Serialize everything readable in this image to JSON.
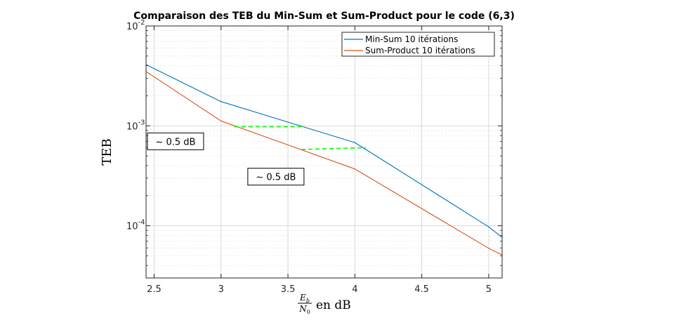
{
  "chart_data": {
    "type": "line",
    "title": "Comparaison des TEB du Min-Sum et Sum-Product pour le code (6,3)",
    "xlabel": {
      "frac_num": "E",
      "frac_num_sub": "b",
      "frac_den": "N",
      "frac_den_sub": "0",
      "suffix": "en dB"
    },
    "ylabel": "TEB",
    "xlim": [
      2.44,
      5.1
    ],
    "ylim": [
      3e-05,
      0.01
    ],
    "yscale": "log",
    "grid": true,
    "minor_grid": true,
    "legend_position": "top-right",
    "x_ticks": [
      2.5,
      3,
      3.5,
      4,
      4.5,
      5
    ],
    "x_tick_labels": [
      "2.5",
      "3",
      "3.5",
      "4",
      "4.5",
      "5"
    ],
    "y_ticks": [
      0.0001,
      0.001,
      0.01
    ],
    "y_tick_labels": [
      {
        "base": "10",
        "exp": "-4"
      },
      {
        "base": "10",
        "exp": "-3"
      },
      {
        "base": "10",
        "exp": "-2"
      }
    ],
    "series": [
      {
        "name": "Min-Sum 10 itérations",
        "color": "#0072BD",
        "x": [
          2.44,
          3,
          4,
          5,
          5.1
        ],
        "y": [
          0.0041,
          0.00175,
          0.00068,
          9.75e-05,
          7.65e-05
        ]
      },
      {
        "name": "Sum-Product 10 itérations",
        "color": "#D95319",
        "x": [
          2.44,
          3,
          4,
          5,
          5.1
        ],
        "y": [
          0.0035,
          0.00112,
          0.00037,
          5.95e-05,
          5.1e-05
        ]
      }
    ],
    "annotations": [
      {
        "kind": "line",
        "color": "#00FF00",
        "style": "dashed",
        "x": [
          3.1,
          3.6
        ],
        "y": [
          0.00098,
          0.00098
        ]
      },
      {
        "kind": "line",
        "color": "#00FF00",
        "style": "dashed",
        "x": [
          3.6,
          4.08
        ],
        "y": [
          0.00058,
          0.000605
        ]
      },
      {
        "kind": "text",
        "text": "~ 0.5 dB",
        "x": 2.66,
        "y": 0.0007
      },
      {
        "kind": "text",
        "text": "~ 0.5 dB",
        "x": 3.41,
        "y": 0.00031
      }
    ]
  }
}
